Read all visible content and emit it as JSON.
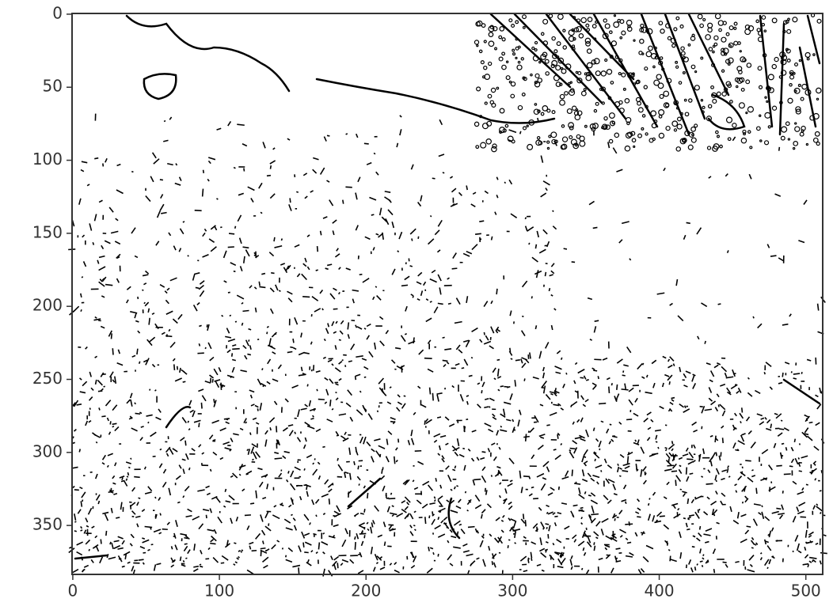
{
  "chart_data": {
    "type": "image",
    "xlim": [
      -0.5,
      511.5
    ],
    "ylim": [
      383.5,
      -0.5
    ],
    "xticks": [
      0,
      100,
      200,
      300,
      400,
      500
    ],
    "yticks": [
      0,
      50,
      100,
      150,
      200,
      250,
      300,
      350
    ]
  }
}
